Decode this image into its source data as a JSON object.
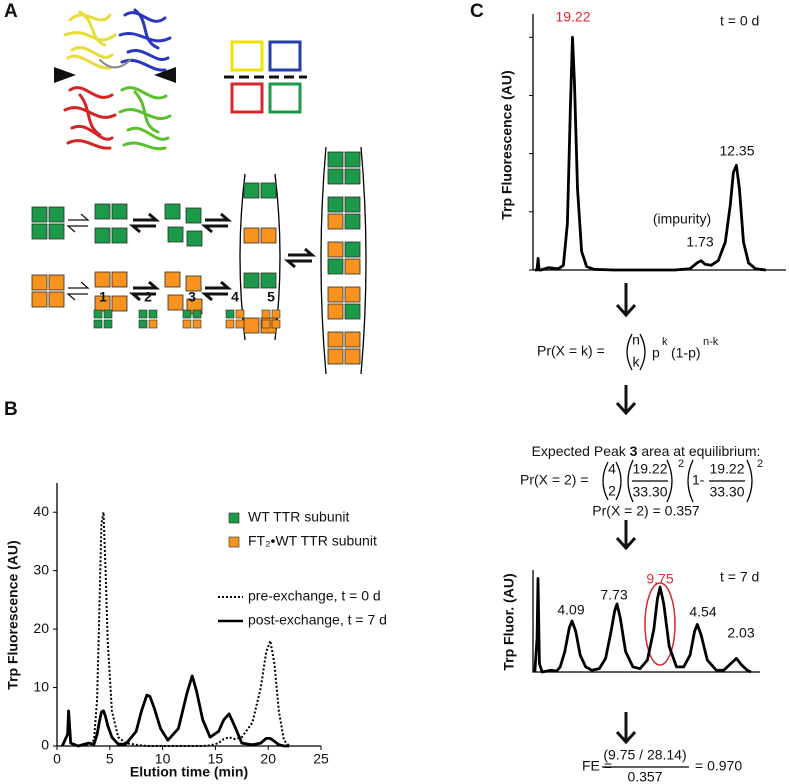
{
  "panels": {
    "a": "A",
    "b": "B",
    "c": "C"
  },
  "chart_data": [
    {
      "type": "line",
      "x_label": "Elution time (min)",
      "y_label": "Trp Fluorescence (AU)",
      "x": [
        0.5,
        1.0,
        1.1,
        1.3,
        2.0,
        3.0,
        3.5,
        3.8,
        4.0,
        4.2,
        4.4,
        4.6,
        4.8,
        5.2,
        5.8,
        6.5,
        7.5,
        8.0,
        8.5,
        8.8,
        9.2,
        9.8,
        10.5,
        11.5,
        12.3,
        12.8,
        13.2,
        13.8,
        14.5,
        15.3,
        15.8,
        16.3,
        16.8,
        17.5,
        18.5,
        19.3,
        19.8,
        20.2,
        20.6,
        21.0,
        21.5,
        22.0
      ],
      "xlim": [
        0,
        25
      ],
      "xticks": [
        0,
        5,
        10,
        15,
        20,
        25
      ],
      "ylim": [
        0,
        45
      ],
      "yticks": [
        0,
        10,
        20,
        30,
        40
      ],
      "series": [
        {
          "name": "pre-exchange, t = 0 d",
          "color": "#000000",
          "style": "dotted",
          "values": [
            0,
            2,
            6,
            0.5,
            0,
            0.3,
            1,
            8,
            22,
            38,
            40,
            30,
            18,
            6,
            1.5,
            0.5,
            0.2,
            0.1,
            0,
            0,
            0,
            0,
            0,
            0,
            0,
            0,
            0,
            0,
            0.1,
            0.5,
            1.2,
            1.5,
            1.2,
            1.5,
            4,
            10,
            16,
            18,
            14,
            6,
            1,
            0
          ]
        },
        {
          "name": "post-exchange, t = 7 d",
          "color": "#000000",
          "style": "solid",
          "values": [
            0,
            2,
            6,
            0.5,
            0,
            0.5,
            0.3,
            2,
            4,
            5.8,
            6,
            5,
            3.5,
            1.5,
            0.3,
            0.3,
            2.5,
            6,
            8.7,
            8.5,
            6.5,
            3,
            1,
            3,
            9,
            12,
            9.5,
            4.5,
            1.5,
            2.5,
            4.5,
            5.5,
            3.5,
            0.5,
            0.2,
            0.5,
            1.3,
            1.3,
            0.8,
            0.2,
            0,
            0
          ]
        }
      ],
      "peak_labels": [
        "1",
        "2",
        "3",
        "4",
        "5"
      ],
      "subunit_legend": [
        {
          "name": "WT TTR subunit",
          "color": "#1c9a49"
        },
        {
          "name": "FT₂•WT TTR subunit",
          "color": "#f7931e"
        }
      ]
    },
    {
      "type": "line",
      "y_label": "Trp Fluorescence (AU)",
      "annotation": "t = 0 d",
      "x": [
        0.2,
        0.4,
        0.5,
        0.6,
        0.8,
        1.5,
        2.5,
        3.0,
        3.4,
        3.7,
        3.9,
        4.1,
        4.4,
        4.8,
        5.3,
        6.0,
        8,
        10,
        12,
        14,
        15.5,
        16.2,
        16.6,
        17.0,
        17.6,
        18.3,
        19.0,
        19.5,
        19.8,
        20.1,
        20.4,
        20.8,
        21.3,
        22.0,
        23
      ],
      "xlim": [
        0,
        25
      ],
      "ylim": [
        0,
        110
      ],
      "yticks": [
        0,
        25,
        50,
        75,
        100
      ],
      "series": [
        {
          "color": "#000000",
          "style": "solid",
          "values": [
            0,
            0,
            5,
            0,
            0,
            1,
            0.5,
            2,
            20,
            70,
            100,
            80,
            35,
            8,
            1.5,
            0.3,
            0,
            0,
            0,
            0,
            0.5,
            3,
            4,
            2.5,
            2,
            4,
            12,
            28,
            42,
            45,
            35,
            12,
            3,
            0.5,
            0
          ]
        }
      ],
      "peak_labels": [
        "19.22",
        "12.35",
        "1.73"
      ],
      "note": "(impurity)"
    },
    {
      "type": "line",
      "y_label": "Trp Fluor. (AU)",
      "annotation": "t = 7 d",
      "x": [
        0.2,
        0.45,
        0.55,
        0.7,
        1.0,
        2.0,
        2.6,
        3.0,
        3.5,
        4.0,
        4.3,
        4.7,
        5.2,
        5.8,
        6.5,
        7.3,
        8.0,
        8.6,
        9.0,
        9.25,
        9.6,
        10.2,
        11.0,
        11.8,
        12.6,
        13.3,
        13.7,
        14.0,
        14.4,
        15.0,
        15.8,
        16.6,
        17.3,
        17.8,
        18.1,
        18.5,
        19.2,
        20.2,
        21.0,
        21.8,
        22.4,
        23.0,
        23.6,
        24.0
      ],
      "xlim": [
        0,
        25
      ],
      "ylim": [
        0,
        60
      ],
      "series": [
        {
          "color": "#000000",
          "style": "solid",
          "values": [
            0,
            20,
            55,
            5,
            0,
            1,
            0.5,
            3,
            12,
            26,
            30,
            24,
            10,
            3,
            1,
            2,
            8,
            24,
            36,
            40,
            32,
            12,
            3,
            2,
            7,
            25,
            43,
            50,
            40,
            15,
            3,
            3,
            10,
            24,
            28,
            22,
            7,
            1,
            1,
            5,
            8,
            4,
            1,
            0
          ]
        }
      ],
      "peak_labels": [
        "4.09",
        "7.73",
        "9.75",
        "4.54",
        "2.03"
      ]
    }
  ],
  "equations": {
    "binomial": {
      "lhs": "Pr(X = k) =",
      "n": "n",
      "k": "k",
      "p": "p",
      "exp_k": "k",
      "rest": "(1-p)",
      "exp_nk": "n-k"
    },
    "heading": {
      "pre": "Expected Peak ",
      "bold": "3",
      "post": " area at equilibrium:"
    },
    "calc": {
      "lhs": "Pr(X = 2) =",
      "n": "4",
      "k": "2",
      "num": "19.22",
      "den": "33.30",
      "exp": "2",
      "one_minus": "1-",
      "num2": "19.22",
      "den2": "33.30",
      "exp2": "2"
    },
    "result": "Pr(X = 2) = 0.357",
    "fe": {
      "lhs": "FE =",
      "num": "(9.75 / 28.14)",
      "den": "0.357",
      "rhs": "= 0.970"
    }
  }
}
